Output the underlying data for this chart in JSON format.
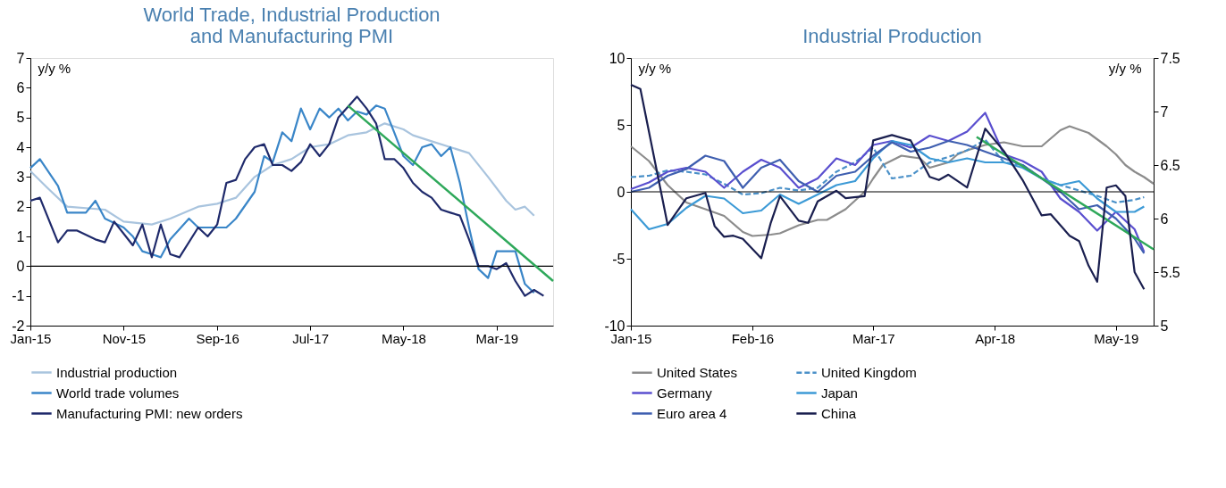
{
  "chart_data": [
    {
      "type": "line",
      "title": "World Trade, Industrial Production\nand Manufacturing PMI",
      "ylabel": "y/y %",
      "xlim": [
        "2015-01",
        "2019-09"
      ],
      "xticks": [
        {
          "value": "2015-01",
          "label": "Jan-15"
        },
        {
          "value": "2015-11",
          "label": "Nov-15"
        },
        {
          "value": "2016-09",
          "label": "Sep-16"
        },
        {
          "value": "2017-07",
          "label": "Jul-17"
        },
        {
          "value": "2018-05",
          "label": "May-18"
        },
        {
          "value": "2019-03",
          "label": "Mar-19"
        }
      ],
      "ylim": [
        -2,
        7
      ],
      "yticks": [
        -2,
        -1,
        0,
        1,
        2,
        3,
        4,
        5,
        6,
        7
      ],
      "grid": false,
      "legend": "bottom",
      "ref_lines": [
        {
          "axis": "y",
          "value": 0,
          "color": "#000000"
        }
      ],
      "series": [
        {
          "name": "Industrial production",
          "color": "#a9c4de",
          "x": [
            "2015-01",
            "2015-03",
            "2015-05",
            "2015-09",
            "2015-11",
            "2016-02",
            "2016-04",
            "2016-07",
            "2016-09",
            "2016-11",
            "2017-01",
            "2017-03",
            "2017-05",
            "2017-07",
            "2017-09",
            "2017-11",
            "2018-01",
            "2018-03",
            "2018-05",
            "2018-06",
            "2018-08",
            "2018-10",
            "2018-12",
            "2019-02",
            "2019-04",
            "2019-05",
            "2019-06",
            "2019-07"
          ],
          "values": [
            3.2,
            2.6,
            2.0,
            1.9,
            1.5,
            1.4,
            1.6,
            2.0,
            2.1,
            2.3,
            3.0,
            3.4,
            3.6,
            4.0,
            4.1,
            4.4,
            4.5,
            4.8,
            4.6,
            4.4,
            4.2,
            4.0,
            3.8,
            3.0,
            2.2,
            1.9,
            2.0,
            1.7
          ]
        },
        {
          "name": "World trade volumes",
          "color": "#3a86c8",
          "x": [
            "2015-01",
            "2015-02",
            "2015-04",
            "2015-05",
            "2015-07",
            "2015-08",
            "2015-09",
            "2015-11",
            "2015-12",
            "2016-01",
            "2016-02",
            "2016-03",
            "2016-04",
            "2016-06",
            "2016-07",
            "2016-10",
            "2016-11",
            "2017-01",
            "2017-02",
            "2017-03",
            "2017-04",
            "2017-05",
            "2017-06",
            "2017-07",
            "2017-08",
            "2017-09",
            "2017-10",
            "2017-11",
            "2017-12",
            "2018-01",
            "2018-02",
            "2018-03",
            "2018-04",
            "2018-05",
            "2018-06",
            "2018-07",
            "2018-08",
            "2018-09",
            "2018-10",
            "2018-11",
            "2018-12",
            "2019-01",
            "2019-02",
            "2019-03",
            "2019-05",
            "2019-06",
            "2019-07"
          ],
          "values": [
            3.3,
            3.6,
            2.7,
            1.8,
            1.8,
            2.2,
            1.6,
            1.3,
            1.0,
            0.5,
            0.4,
            0.3,
            0.9,
            1.6,
            1.3,
            1.3,
            1.6,
            2.5,
            3.7,
            3.5,
            4.5,
            4.2,
            5.3,
            4.6,
            5.3,
            5.0,
            5.3,
            4.9,
            5.2,
            5.1,
            5.4,
            5.3,
            4.5,
            3.7,
            3.4,
            4.0,
            4.1,
            3.7,
            4.0,
            2.8,
            1.3,
            -0.1,
            -0.4,
            0.5,
            0.5,
            -0.6,
            -0.9
          ]
        },
        {
          "name": "Manufacturing PMI: new orders",
          "color": "#1f2a6b",
          "x": [
            "2015-01",
            "2015-02",
            "2015-04",
            "2015-05",
            "2015-06",
            "2015-08",
            "2015-09",
            "2015-10",
            "2015-12",
            "2016-01",
            "2016-02",
            "2016-03",
            "2016-04",
            "2016-05",
            "2016-07",
            "2016-08",
            "2016-09",
            "2016-10",
            "2016-11",
            "2016-12",
            "2017-01",
            "2017-02",
            "2017-03",
            "2017-04",
            "2017-05",
            "2017-06",
            "2017-07",
            "2017-08",
            "2017-09",
            "2017-10",
            "2017-12",
            "2018-01",
            "2018-02",
            "2018-03",
            "2018-04",
            "2018-05",
            "2018-06",
            "2018-07",
            "2018-08",
            "2018-09",
            "2018-10",
            "2018-11",
            "2018-12",
            "2019-01",
            "2019-02",
            "2019-03",
            "2019-04",
            "2019-05",
            "2019-06",
            "2019-07",
            "2019-08"
          ],
          "values": [
            2.2,
            2.3,
            0.8,
            1.2,
            1.2,
            0.9,
            0.8,
            1.5,
            0.7,
            1.4,
            0.3,
            1.4,
            0.4,
            0.3,
            1.3,
            1.0,
            1.4,
            2.8,
            2.9,
            3.6,
            4.0,
            4.1,
            3.4,
            3.4,
            3.2,
            3.5,
            4.1,
            3.7,
            4.1,
            5.0,
            5.7,
            5.3,
            4.8,
            3.6,
            3.6,
            3.3,
            2.8,
            2.5,
            2.3,
            1.9,
            1.8,
            1.7,
            0.9,
            0.0,
            0.0,
            -0.1,
            0.1,
            -0.5,
            -1.0,
            -0.8,
            -1.0
          ]
        },
        {
          "type": "line",
          "color": "#2ea85a",
          "x": [
            "2017-11",
            "2019-09"
          ],
          "values": [
            5.4,
            -0.5
          ]
        }
      ]
    },
    {
      "type": "line",
      "title": "Industrial Production",
      "ylabel": "y/y %",
      "y2label": "y/y %",
      "xlim": [
        "2015-01",
        "2019-09"
      ],
      "xticks": [
        {
          "value": "2015-01",
          "label": "Jan-15"
        },
        {
          "value": "2016-02",
          "label": "Feb-16"
        },
        {
          "value": "2017-03",
          "label": "Mar-17"
        },
        {
          "value": "2018-04",
          "label": "Apr-18"
        },
        {
          "value": "2019-05",
          "label": "May-19"
        }
      ],
      "ylim": [
        -10,
        10
      ],
      "yticks": [
        -10,
        -5,
        0,
        5,
        10
      ],
      "y2lim": [
        5,
        7.5
      ],
      "y2ticks": [
        5,
        5.5,
        6,
        6.5,
        7,
        7.5
      ],
      "grid": false,
      "legend": "bottom",
      "ref_lines": [
        {
          "axis": "y",
          "value": 0,
          "color": "#000000"
        }
      ],
      "series": [
        {
          "name": "United States",
          "color": "#8c8c8c",
          "x": [
            "2015-01",
            "2015-03",
            "2015-05",
            "2015-07",
            "2015-09",
            "2015-11",
            "2016-01",
            "2016-02",
            "2016-04",
            "2016-05",
            "2016-07",
            "2016-09",
            "2016-10",
            "2016-12",
            "2017-02",
            "2017-03",
            "2017-04",
            "2017-06",
            "2017-08",
            "2017-09",
            "2017-11",
            "2017-12",
            "2018-01",
            "2018-03",
            "2018-05",
            "2018-07",
            "2018-09",
            "2018-11",
            "2018-12",
            "2019-02",
            "2019-04",
            "2019-05",
            "2019-06",
            "2019-07",
            "2019-08",
            "2019-09"
          ],
          "values": [
            3.4,
            2.3,
            0.5,
            -0.8,
            -1.3,
            -1.8,
            -3.0,
            -3.3,
            -3.2,
            -3.1,
            -2.5,
            -2.1,
            -2.1,
            -1.3,
            0.0,
            1.0,
            2.0,
            2.7,
            2.5,
            1.8,
            2.2,
            2.8,
            3.1,
            3.5,
            3.7,
            3.4,
            3.4,
            4.6,
            4.9,
            4.4,
            3.4,
            2.8,
            2.0,
            1.5,
            1.1,
            0.6
          ]
        },
        {
          "name": "United Kingdom",
          "color": "#4a90c8",
          "line_style": "dashed",
          "x": [
            "2015-01",
            "2015-03",
            "2015-05",
            "2015-07",
            "2015-09",
            "2015-11",
            "2016-01",
            "2016-03",
            "2016-05",
            "2016-07",
            "2016-09",
            "2016-11",
            "2017-01",
            "2017-03",
            "2017-05",
            "2017-07",
            "2017-09",
            "2017-11",
            "2018-01",
            "2018-03",
            "2018-05",
            "2018-07",
            "2018-09",
            "2018-11",
            "2019-01",
            "2019-03",
            "2019-05",
            "2019-07",
            "2019-08"
          ],
          "values": [
            1.1,
            1.2,
            1.6,
            1.5,
            1.3,
            0.6,
            -0.2,
            -0.1,
            0.3,
            0.1,
            0.3,
            1.5,
            2.2,
            3.3,
            1.0,
            1.2,
            2.2,
            2.6,
            3.1,
            3.9,
            2.2,
            2.0,
            1.0,
            0.5,
            0.1,
            -0.3,
            -0.8,
            -0.6,
            -0.4
          ]
        },
        {
          "name": "Germany",
          "color": "#5a4fcf",
          "x": [
            "2015-01",
            "2015-03",
            "2015-05",
            "2015-07",
            "2015-09",
            "2015-11",
            "2016-01",
            "2016-03",
            "2016-05",
            "2016-07",
            "2016-09",
            "2016-11",
            "2017-01",
            "2017-03",
            "2017-05",
            "2017-07",
            "2017-09",
            "2017-11",
            "2018-01",
            "2018-03",
            "2018-05",
            "2018-07",
            "2018-09",
            "2018-11",
            "2019-01",
            "2019-03",
            "2019-05",
            "2019-07",
            "2019-08"
          ],
          "values": [
            0.2,
            0.7,
            1.5,
            1.8,
            1.5,
            0.3,
            1.5,
            2.4,
            1.8,
            0.3,
            1.0,
            2.5,
            2.0,
            3.5,
            3.8,
            3.3,
            4.2,
            3.8,
            4.5,
            5.9,
            2.8,
            2.3,
            1.5,
            -0.5,
            -1.5,
            -2.9,
            -1.5,
            -2.8,
            -4.5
          ]
        },
        {
          "name": "Japan",
          "color": "#3c9ad6",
          "x": [
            "2015-01",
            "2015-03",
            "2015-05",
            "2015-07",
            "2015-09",
            "2015-11",
            "2016-01",
            "2016-03",
            "2016-05",
            "2016-07",
            "2016-09",
            "2016-11",
            "2017-01",
            "2017-03",
            "2017-05",
            "2017-07",
            "2017-09",
            "2017-11",
            "2018-01",
            "2018-03",
            "2018-05",
            "2018-07",
            "2018-09",
            "2018-11",
            "2019-01",
            "2019-03",
            "2019-05",
            "2019-07",
            "2019-08"
          ],
          "values": [
            -1.3,
            -2.8,
            -2.4,
            -1.2,
            -0.3,
            -0.5,
            -1.6,
            -1.4,
            -0.2,
            -0.9,
            -0.2,
            0.5,
            0.8,
            2.5,
            3.8,
            3.5,
            2.5,
            2.2,
            2.5,
            2.2,
            2.2,
            1.8,
            1.0,
            0.5,
            0.8,
            -0.5,
            -1.5,
            -1.5,
            -1.1
          ]
        },
        {
          "name": "Euro area 4",
          "color": "#3f5fb0",
          "x": [
            "2015-01",
            "2015-03",
            "2015-05",
            "2015-07",
            "2015-09",
            "2015-11",
            "2016-01",
            "2016-03",
            "2016-05",
            "2016-07",
            "2016-09",
            "2016-11",
            "2017-01",
            "2017-03",
            "2017-05",
            "2017-07",
            "2017-09",
            "2017-11",
            "2018-01",
            "2018-03",
            "2018-05",
            "2018-07",
            "2018-09",
            "2018-11",
            "2019-01",
            "2019-03",
            "2019-05",
            "2019-07",
            "2019-08"
          ],
          "values": [
            0.0,
            0.3,
            1.2,
            1.7,
            2.7,
            2.3,
            0.3,
            1.8,
            2.4,
            0.8,
            0.0,
            1.2,
            1.5,
            2.7,
            3.7,
            3.0,
            3.3,
            3.8,
            3.5,
            3.0,
            2.5,
            2.0,
            1.0,
            0.0,
            -1.3,
            -1.0,
            -2.0,
            -3.5,
            -4.6
          ]
        },
        {
          "name": "China",
          "color": "#1a1f4f",
          "axis": "y2",
          "x": [
            "2015-01",
            "2015-02",
            "2015-05",
            "2015-07",
            "2015-09",
            "2015-10",
            "2015-11",
            "2015-12",
            "2016-01",
            "2016-03",
            "2016-04",
            "2016-05",
            "2016-07",
            "2016-08",
            "2016-09",
            "2016-11",
            "2016-12",
            "2017-02",
            "2017-03",
            "2017-05",
            "2017-07",
            "2017-09",
            "2017-10",
            "2017-11",
            "2018-01",
            "2018-03",
            "2018-05",
            "2018-07",
            "2018-09",
            "2018-10",
            "2018-12",
            "2019-01",
            "2019-02",
            "2019-03",
            "2019-04",
            "2019-05",
            "2019-06",
            "2019-07",
            "2019-08"
          ],
          "values": [
            7.25,
            7.21,
            5.94,
            6.19,
            6.24,
            5.93,
            5.83,
            5.84,
            5.81,
            5.63,
            5.96,
            6.21,
            5.98,
            5.96,
            6.16,
            6.26,
            6.19,
            6.21,
            6.73,
            6.78,
            6.73,
            6.39,
            6.36,
            6.41,
            6.29,
            6.84,
            6.63,
            6.36,
            6.03,
            6.04,
            5.84,
            5.79,
            5.56,
            5.41,
            6.29,
            6.31,
            6.21,
            5.5,
            5.34
          ]
        },
        {
          "type": "line",
          "color": "#2ea85a",
          "x": [
            "2018-02",
            "2019-09"
          ],
          "values": [
            4.1,
            -4.3
          ]
        }
      ]
    }
  ]
}
